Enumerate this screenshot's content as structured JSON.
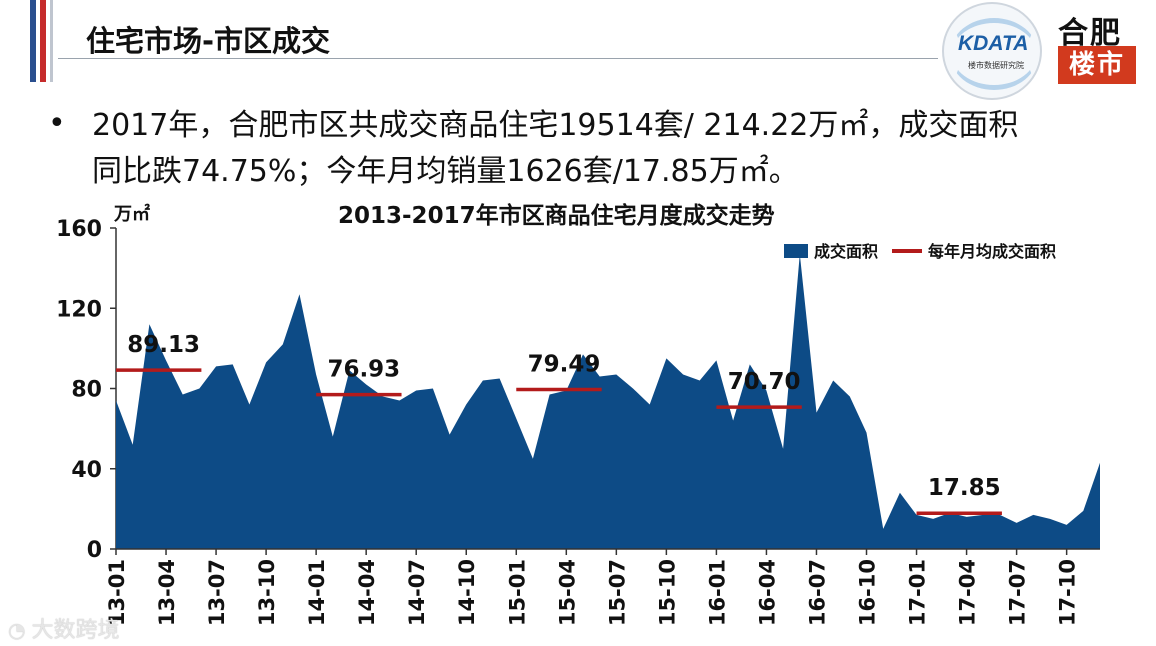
{
  "header": {
    "title": "住宅市场-市区成交"
  },
  "logos": {
    "kdata_word": "KDATA",
    "kdata_sub": "楼市数据研究院",
    "hefei_top": "合肥",
    "hefei_bottom": "楼市"
  },
  "summary": {
    "line1": "2017年，合肥市区共成交商品住宅19514套/ 214.22万㎡，成交面积",
    "line2": "同比跌74.75%；今年月均销量1626套/17.85万㎡。"
  },
  "watermark": "大数跨境",
  "colors": {
    "area": "#0d4b86",
    "avg_line": "#b31b1b",
    "flag_blue": "#2a4f8f",
    "flag_red": "#c62b2b"
  },
  "chart_data": {
    "type": "area",
    "title": "2013-2017年市区商品住宅月度成交走势",
    "ylabel": "万㎡",
    "ylim": [
      0,
      160
    ],
    "yticks": [
      0,
      40,
      80,
      120,
      160
    ],
    "x_tick_labels": [
      "13-01",
      "13-04",
      "13-07",
      "13-10",
      "14-01",
      "14-04",
      "14-07",
      "14-10",
      "15-01",
      "15-04",
      "15-07",
      "15-10",
      "16-01",
      "16-04",
      "16-07",
      "16-10",
      "17-01",
      "17-04",
      "17-07",
      "17-10"
    ],
    "x": [
      "13-01",
      "13-02",
      "13-03",
      "13-04",
      "13-05",
      "13-06",
      "13-07",
      "13-08",
      "13-09",
      "13-10",
      "13-11",
      "13-12",
      "14-01",
      "14-02",
      "14-03",
      "14-04",
      "14-05",
      "14-06",
      "14-07",
      "14-08",
      "14-09",
      "14-10",
      "14-11",
      "14-12",
      "15-01",
      "15-02",
      "15-03",
      "15-04",
      "15-05",
      "15-06",
      "15-07",
      "15-08",
      "15-09",
      "15-10",
      "15-11",
      "15-12",
      "16-01",
      "16-02",
      "16-03",
      "16-04",
      "16-05",
      "16-06",
      "16-07",
      "16-08",
      "16-09",
      "16-10",
      "16-11",
      "16-12",
      "17-01",
      "17-02",
      "17-03",
      "17-04",
      "17-05",
      "17-06",
      "17-07",
      "17-08",
      "17-09",
      "17-10",
      "17-11",
      "17-12"
    ],
    "series": [
      {
        "name": "成交面积",
        "values": [
          74,
          52,
          112,
          94,
          77,
          80,
          91,
          92,
          72,
          93,
          102,
          127,
          87,
          56,
          89,
          82,
          76,
          74,
          79,
          80,
          57,
          72,
          84,
          85,
          65,
          45,
          77,
          79,
          97,
          86,
          87,
          80,
          72,
          95,
          87,
          84,
          94,
          64,
          92,
          79,
          50,
          147,
          68,
          84,
          76,
          58,
          10,
          28,
          17,
          15,
          18,
          16,
          17,
          17,
          13,
          17,
          15,
          12,
          19,
          43
        ]
      },
      {
        "name": "每年月均成交面积",
        "yearly_averages": [
          {
            "year": "2013",
            "value": 89.13,
            "label": "89.13"
          },
          {
            "year": "2014",
            "value": 76.93,
            "label": "76.93"
          },
          {
            "year": "2015",
            "value": 79.49,
            "label": "79.49"
          },
          {
            "year": "2016",
            "value": 70.7,
            "label": "70.70"
          },
          {
            "year": "2017",
            "value": 17.85,
            "label": "17.85"
          }
        ]
      }
    ],
    "legend": [
      "成交面积",
      "每年月均成交面积"
    ],
    "legend_position": "top-right",
    "grid": false
  }
}
